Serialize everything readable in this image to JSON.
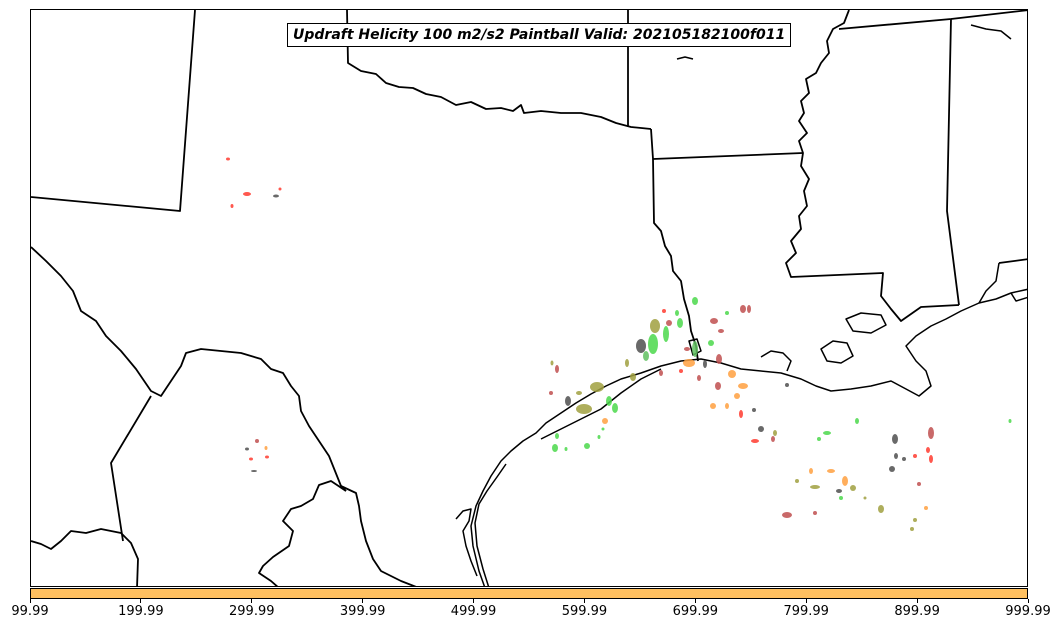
{
  "title": "Updraft Helicity 100 m2/s2 Paintball Valid: 202105182100f011",
  "colorbar": {
    "color": "#ffc060",
    "tick_labels": [
      "99.99",
      "199.99",
      "299.99",
      "399.99",
      "499.99",
      "599.99",
      "699.99",
      "799.99",
      "899.99",
      "999.99"
    ]
  },
  "paintball_colors": [
    "#ff3b30",
    "#4cd94c",
    "#ffa040",
    "#c05050",
    "#a0a040",
    "#505050",
    "#60c060"
  ],
  "map_features": [
    "state-borders",
    "coastline",
    "lakes"
  ]
}
